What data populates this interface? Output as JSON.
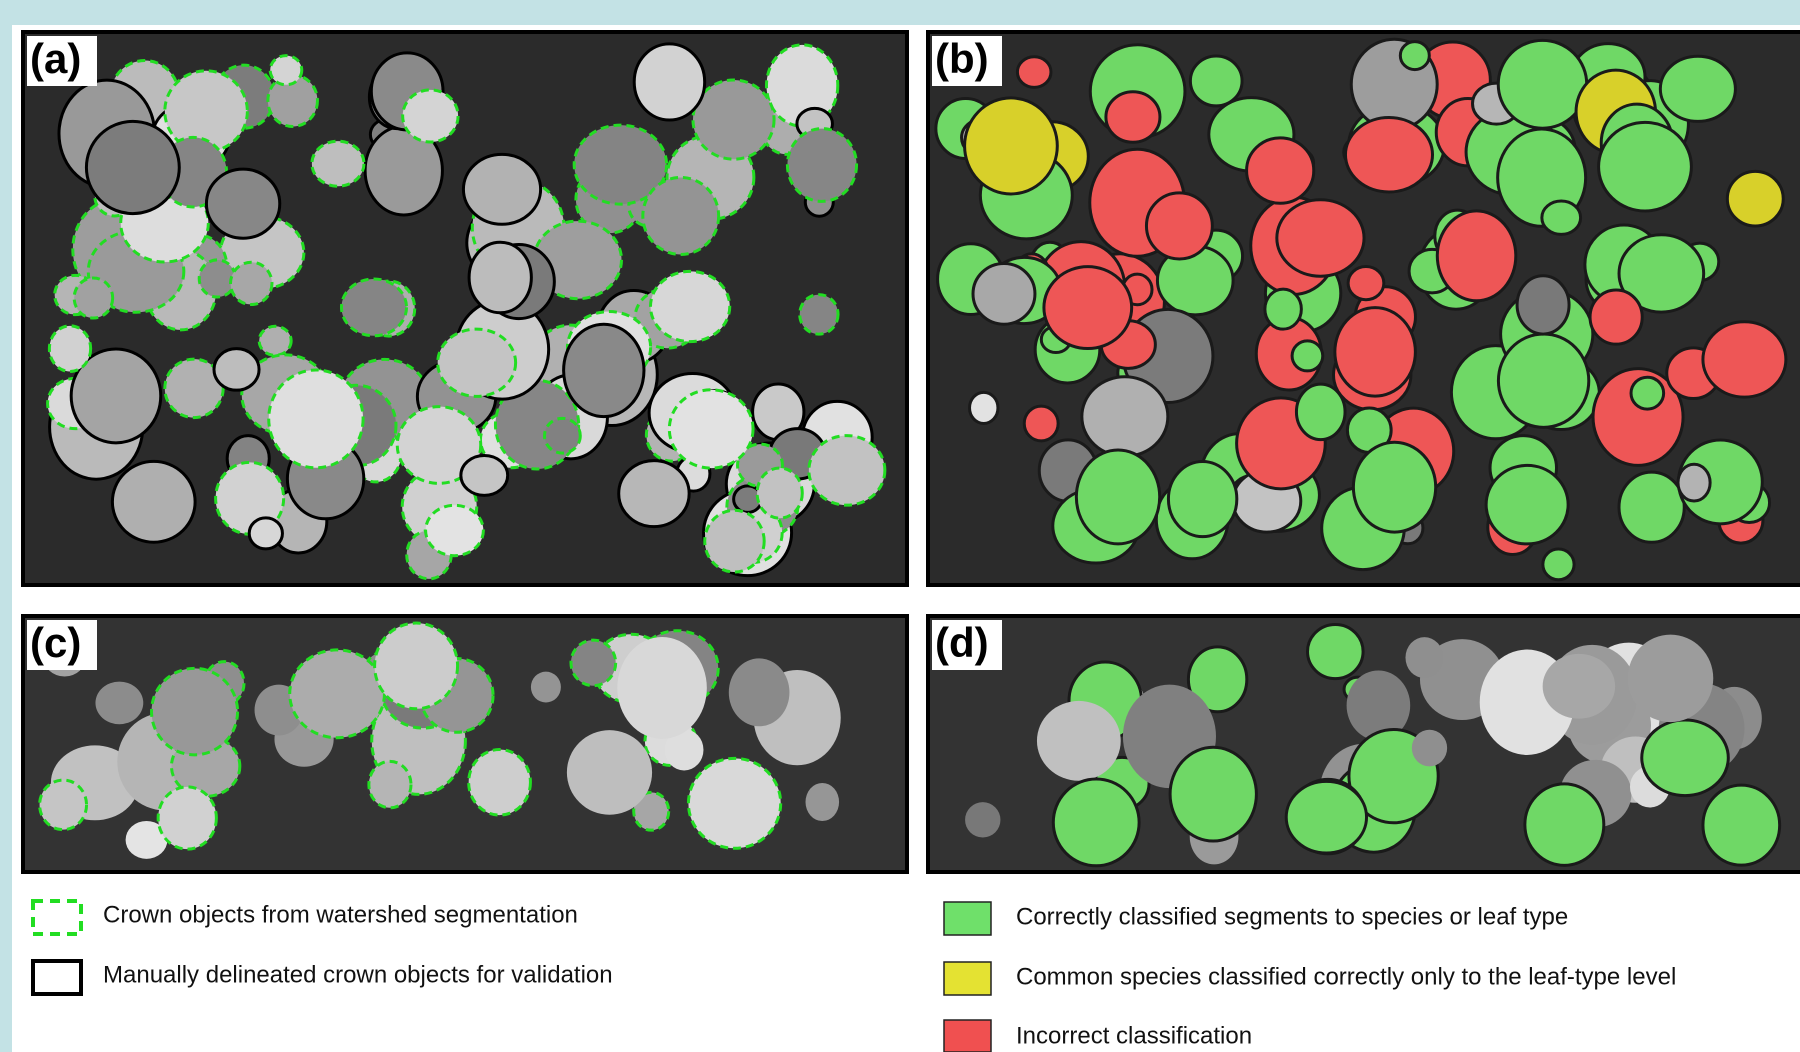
{
  "panels": [
    {
      "label": "(a)"
    },
    {
      "label": "(b)"
    },
    {
      "label": "(c)"
    },
    {
      "label": "(d)"
    }
  ],
  "legend": {
    "left": [
      {
        "label": "Crown objects from watershed segmentation"
      },
      {
        "label": "Manually delineated crown objects for validation"
      }
    ],
    "right": [
      {
        "label": "Correctly classified segments to species or leaf type"
      },
      {
        "label": "Common species classified correctly only to the leaf-type level"
      },
      {
        "label": "Incorrect classification"
      }
    ]
  }
}
